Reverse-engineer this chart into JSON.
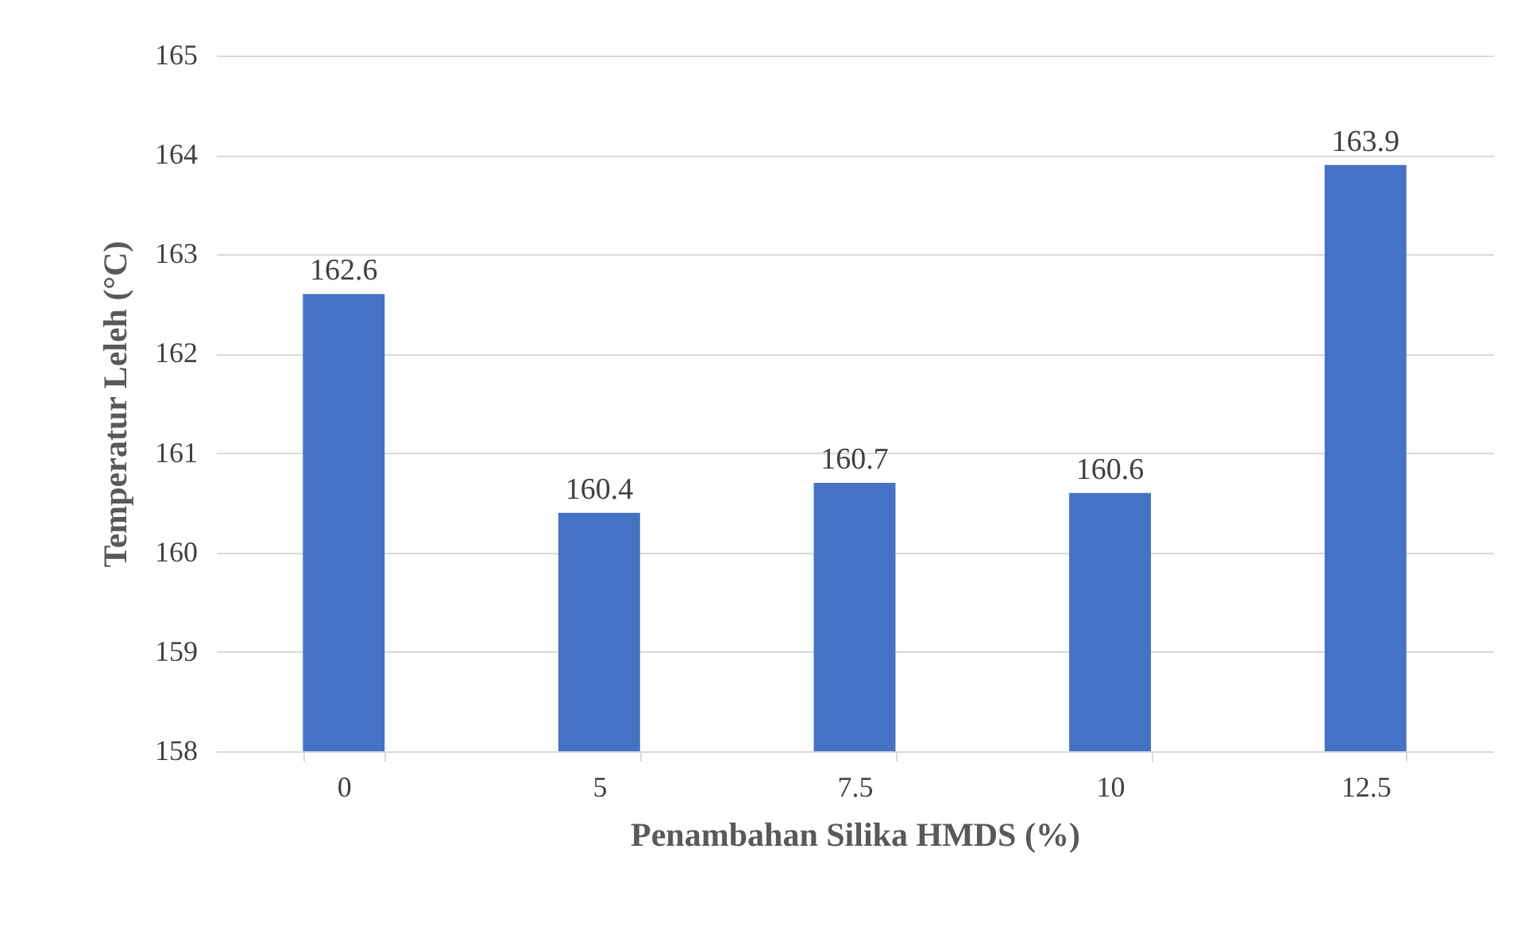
{
  "chart_data": {
    "type": "bar",
    "xlabel": "Penambahan Silika HMDS (%)",
    "ylabel": "Temperatur Leleh (°C)",
    "categories": [
      "0",
      "5",
      "7.5",
      "10",
      "12.5"
    ],
    "values": [
      162.6,
      160.4,
      160.7,
      160.6,
      163.9
    ],
    "color": "#4472c4",
    "ylim": [
      158,
      165
    ],
    "yticks": [
      158,
      159,
      160,
      161,
      162,
      163,
      164,
      165
    ],
    "grid": "y",
    "data_labels": true
  }
}
